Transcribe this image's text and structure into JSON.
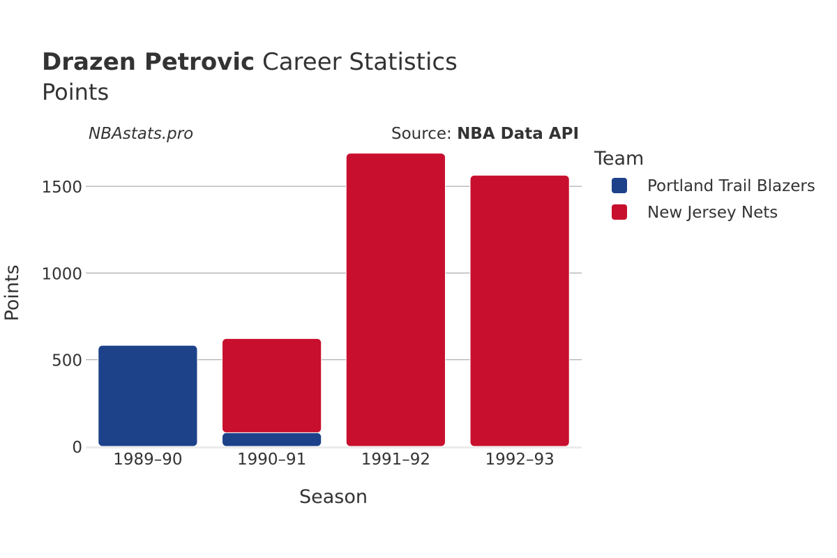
{
  "header": {
    "title_bold": "Drazen Petrovic",
    "title_rest": "Career Statistics",
    "subtitle": "Points",
    "watermark": "NBAstats.pro",
    "source_prefix": "Source: ",
    "source_name": "NBA Data API"
  },
  "chart_data": {
    "type": "bar",
    "stacked": true,
    "xlabel": "Season",
    "ylabel": "Points",
    "categories": [
      "1989–90",
      "1990–91",
      "1991–92",
      "1992–93"
    ],
    "series": [
      {
        "name": "Portland Trail Blazers",
        "color": "#1d428a",
        "values": [
          583,
          79,
          0,
          0
        ]
      },
      {
        "name": "New Jersey Nets",
        "color": "#c8102e",
        "values": [
          0,
          543,
          1691,
          1564
        ]
      }
    ],
    "ylim": [
      0,
      1750
    ],
    "yticks": [
      0,
      500,
      1000,
      1500
    ],
    "grid": true,
    "legend": {
      "title": "Team",
      "position": "right"
    }
  }
}
